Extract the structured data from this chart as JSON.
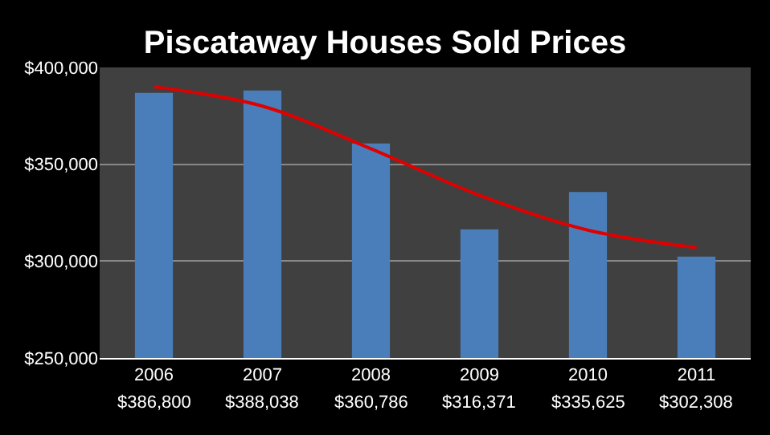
{
  "chart_data": {
    "type": "bar",
    "title": "Piscataway Houses Sold Prices",
    "categories": [
      "2006",
      "2007",
      "2008",
      "2009",
      "2010",
      "2011"
    ],
    "series": [
      {
        "color": "#4a7ebb",
        "values": [
          386800,
          388038,
          360786,
          316371,
          335625,
          302308
        ],
        "value_labels": [
          "$386,800",
          "$388,038",
          "$360,786",
          "$316,371",
          "$335,625",
          "$302,308"
        ]
      },
      {
        "type": "line",
        "color": "#e00000",
        "values": [
          390000,
          380000,
          358000,
          334000,
          316000,
          307000
        ]
      }
    ],
    "ylim": [
      250000,
      400000
    ],
    "yticks": [
      {
        "value": 250000,
        "label": "$250,000"
      },
      {
        "value": 300000,
        "label": "$300,000"
      },
      {
        "value": 350000,
        "label": "$350,000"
      },
      {
        "value": 400000,
        "label": "$400,000"
      }
    ],
    "grid": "y"
  }
}
